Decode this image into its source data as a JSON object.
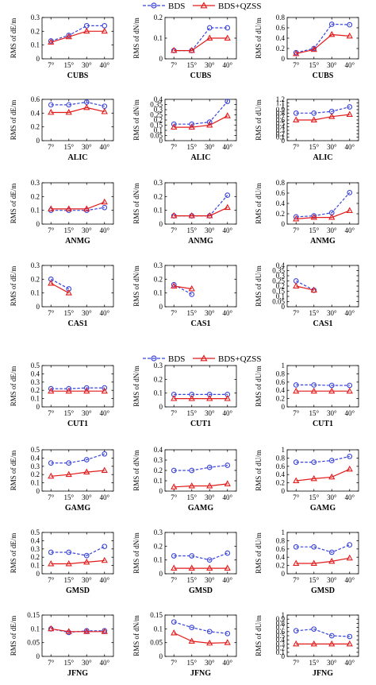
{
  "colors": {
    "bds": "#3a44d9",
    "qzss": "#e21a1a"
  },
  "series_names": [
    "BDS",
    "BDS+QZSS"
  ],
  "categories": [
    "7°",
    "15°",
    "30°",
    "40°"
  ],
  "ylabels": {
    "E": "RMS of dE/m",
    "N": "RMS of dN/m",
    "U": "RMS of dU/m"
  },
  "chart_data": [
    {
      "type": "line",
      "station": "CUBS",
      "component": "E",
      "ylabel": "RMS of dE/m",
      "ylim": [
        0,
        0.3
      ],
      "yticks": [
        "0",
        "0.1",
        "0.2",
        "0.3"
      ],
      "categories": [
        "7°",
        "15°",
        "30°",
        "40°"
      ],
      "series": [
        {
          "name": "BDS",
          "values": [
            0.13,
            0.17,
            0.24,
            0.24
          ]
        },
        {
          "name": "BDS+QZSS",
          "values": [
            0.12,
            0.16,
            0.2,
            0.2
          ]
        }
      ]
    },
    {
      "type": "line",
      "station": "CUBS",
      "component": "N",
      "ylabel": "RMS of dN/m",
      "ylim": [
        0,
        0.2
      ],
      "yticks": [
        "0",
        "0.1",
        "0.2"
      ],
      "categories": [
        "7°",
        "15°",
        "30°",
        "40°"
      ],
      "series": [
        {
          "name": "BDS",
          "values": [
            0.04,
            0.04,
            0.15,
            0.15
          ]
        },
        {
          "name": "BDS+QZSS",
          "values": [
            0.04,
            0.04,
            0.1,
            0.1
          ]
        }
      ]
    },
    {
      "type": "line",
      "station": "CUBS",
      "component": "U",
      "ylabel": "RMS of dU/m",
      "ylim": [
        0,
        0.8
      ],
      "yticks": [
        "0",
        "0.2",
        "0.4",
        "0.6",
        "0.8"
      ],
      "categories": [
        "7°",
        "15°",
        "30°",
        "40°"
      ],
      "series": [
        {
          "name": "BDS",
          "values": [
            0.12,
            0.2,
            0.67,
            0.66
          ]
        },
        {
          "name": "BDS+QZSS",
          "values": [
            0.1,
            0.18,
            0.47,
            0.44
          ]
        }
      ]
    },
    {
      "type": "line",
      "station": "ALIC",
      "component": "E",
      "ylabel": "RMS of dE/m",
      "ylim": [
        0,
        0.6
      ],
      "yticks": [
        "0",
        "0.2",
        "0.4",
        "0.6"
      ],
      "categories": [
        "7°",
        "15°",
        "30°",
        "40°"
      ],
      "series": [
        {
          "name": "BDS",
          "values": [
            0.52,
            0.52,
            0.56,
            0.5
          ]
        },
        {
          "name": "BDS+QZSS",
          "values": [
            0.41,
            0.41,
            0.48,
            0.42
          ]
        }
      ]
    },
    {
      "type": "line",
      "station": "ALIC",
      "component": "N",
      "ylabel": "RMS of dN/m",
      "ylim": [
        0,
        0.4
      ],
      "yticks": [
        "0",
        "0.05",
        "0.1",
        "0.15",
        "0.2",
        "0.25",
        "0.3",
        "0.35",
        "0.4"
      ],
      "categories": [
        "7°",
        "15°",
        "30°",
        "40°"
      ],
      "series": [
        {
          "name": "BDS",
          "values": [
            0.16,
            0.16,
            0.18,
            0.38
          ]
        },
        {
          "name": "BDS+QZSS",
          "values": [
            0.13,
            0.13,
            0.15,
            0.24
          ]
        }
      ]
    },
    {
      "type": "line",
      "station": "ALIC",
      "component": "U",
      "ylabel": "RMS of dU/m",
      "ylim": [
        0,
        1.2
      ],
      "yticks": [
        "0",
        "0.1",
        "0.2",
        "0.3",
        "0.4",
        "0.5",
        "0.6",
        "0.7",
        "0.8",
        "0.9",
        "1",
        "1.1",
        "1.2"
      ],
      "categories": [
        "7°",
        "15°",
        "30°",
        "40°"
      ],
      "series": [
        {
          "name": "BDS",
          "values": [
            0.8,
            0.8,
            0.85,
            0.98
          ]
        },
        {
          "name": "BDS+QZSS",
          "values": [
            0.6,
            0.6,
            0.7,
            0.76
          ]
        }
      ]
    },
    {
      "type": "line",
      "station": "ANMG",
      "component": "E",
      "ylabel": "RMS of dE/m",
      "ylim": [
        0,
        0.3
      ],
      "yticks": [
        "0",
        "0.1",
        "0.2",
        "0.3"
      ],
      "categories": [
        "7°",
        "15°",
        "30°",
        "40°"
      ],
      "series": [
        {
          "name": "BDS",
          "values": [
            0.1,
            0.1,
            0.1,
            0.12
          ]
        },
        {
          "name": "BDS+QZSS",
          "values": [
            0.11,
            0.11,
            0.11,
            0.16
          ]
        }
      ]
    },
    {
      "type": "line",
      "station": "ANMG",
      "component": "N",
      "ylabel": "RMS of dN/m",
      "ylim": [
        0,
        0.3
      ],
      "yticks": [
        "0",
        "0.1",
        "0.2",
        "0.3"
      ],
      "categories": [
        "7°",
        "15°",
        "30°",
        "40°"
      ],
      "series": [
        {
          "name": "BDS",
          "values": [
            0.06,
            0.06,
            0.06,
            0.21
          ]
        },
        {
          "name": "BDS+QZSS",
          "values": [
            0.06,
            0.06,
            0.06,
            0.12
          ]
        }
      ]
    },
    {
      "type": "line",
      "station": "ANMG",
      "component": "U",
      "ylabel": "RMS of dU/m",
      "ylim": [
        0,
        0.8
      ],
      "yticks": [
        "0",
        "0.2",
        "0.4",
        "0.6",
        "0.8"
      ],
      "categories": [
        "7°",
        "15°",
        "30°",
        "40°"
      ],
      "series": [
        {
          "name": "BDS",
          "values": [
            0.14,
            0.16,
            0.22,
            0.61
          ]
        },
        {
          "name": "BDS+QZSS",
          "values": [
            0.1,
            0.13,
            0.13,
            0.26
          ]
        }
      ]
    },
    {
      "type": "line",
      "station": "CAS1",
      "component": "E",
      "ylabel": "RMS of dE/m",
      "ylim": [
        0,
        0.3
      ],
      "yticks": [
        "0",
        "0.1",
        "0.2",
        "0.3"
      ],
      "categories": [
        "7°",
        "15°",
        "30°",
        "40°"
      ],
      "series": [
        {
          "name": "BDS",
          "values": [
            0.2,
            0.13,
            null,
            null
          ]
        },
        {
          "name": "BDS+QZSS",
          "values": [
            0.17,
            0.1,
            null,
            null
          ]
        }
      ]
    },
    {
      "type": "line",
      "station": "CAS1",
      "component": "N",
      "ylabel": "RMS of dN/m",
      "ylim": [
        0,
        0.3
      ],
      "yticks": [
        "0",
        "0.1",
        "0.2",
        "0.3"
      ],
      "categories": [
        "7°",
        "15°",
        "30°",
        "40°"
      ],
      "series": [
        {
          "name": "BDS",
          "values": [
            0.16,
            0.09,
            null,
            null
          ]
        },
        {
          "name": "BDS+QZSS",
          "values": [
            0.15,
            0.13,
            null,
            null
          ]
        }
      ]
    },
    {
      "type": "line",
      "station": "CAS1",
      "component": "U",
      "ylabel": "RMS of dU/m",
      "ylim": [
        0,
        0.4
      ],
      "yticks": [
        "0",
        "0.05",
        "0.1",
        "0.15",
        "0.2",
        "0.25",
        "0.3",
        "0.35",
        "0.4"
      ],
      "categories": [
        "7°",
        "15°",
        "30°",
        "40°"
      ],
      "series": [
        {
          "name": "BDS",
          "values": [
            0.25,
            0.16,
            null,
            null
          ]
        },
        {
          "name": "BDS+QZSS",
          "values": [
            0.2,
            0.16,
            null,
            null
          ]
        }
      ]
    },
    {
      "type": "line",
      "station": "CUT1",
      "component": "E",
      "ylabel": "RMS of dE/m",
      "ylim": [
        0,
        0.5
      ],
      "yticks": [
        "0",
        "0.1",
        "0.2",
        "0.3",
        "0.4",
        "0.5"
      ],
      "categories": [
        "7°",
        "15°",
        "30°",
        "40°"
      ],
      "series": [
        {
          "name": "BDS",
          "values": [
            0.22,
            0.22,
            0.23,
            0.23
          ]
        },
        {
          "name": "BDS+QZSS",
          "values": [
            0.19,
            0.19,
            0.19,
            0.19
          ]
        }
      ]
    },
    {
      "type": "line",
      "station": "CUT1",
      "component": "N",
      "ylabel": "RMS of dN/m",
      "ylim": [
        0,
        0.3
      ],
      "yticks": [
        "0",
        "0.1",
        "0.2",
        "0.3"
      ],
      "categories": [
        "7°",
        "15°",
        "30°",
        "40°"
      ],
      "series": [
        {
          "name": "BDS",
          "values": [
            0.09,
            0.09,
            0.09,
            0.09
          ]
        },
        {
          "name": "BDS+QZSS",
          "values": [
            0.06,
            0.06,
            0.06,
            0.06
          ]
        }
      ]
    },
    {
      "type": "line",
      "station": "CUT1",
      "component": "U",
      "ylabel": "RMS of dU/m",
      "ylim": [
        0,
        1
      ],
      "yticks": [
        "0",
        "0.2",
        "0.4",
        "0.6",
        "0.8",
        "1"
      ],
      "categories": [
        "7°",
        "15°",
        "30°",
        "40°"
      ],
      "series": [
        {
          "name": "BDS",
          "values": [
            0.53,
            0.53,
            0.52,
            0.52
          ]
        },
        {
          "name": "BDS+QZSS",
          "values": [
            0.38,
            0.38,
            0.38,
            0.38
          ]
        }
      ]
    },
    {
      "type": "line",
      "station": "GAMG",
      "component": "E",
      "ylabel": "RMS of dE/m",
      "ylim": [
        0,
        0.5
      ],
      "yticks": [
        "0",
        "0.1",
        "0.2",
        "0.3",
        "0.4",
        "0.5"
      ],
      "categories": [
        "7°",
        "15°",
        "30°",
        "40°"
      ],
      "series": [
        {
          "name": "BDS",
          "values": [
            0.34,
            0.34,
            0.38,
            0.45
          ]
        },
        {
          "name": "BDS+QZSS",
          "values": [
            0.18,
            0.2,
            0.23,
            0.25
          ]
        }
      ]
    },
    {
      "type": "line",
      "station": "GAMG",
      "component": "N",
      "ylabel": "RMS of dN/m",
      "ylim": [
        0,
        0.4
      ],
      "yticks": [
        "0",
        "0.1",
        "0.2",
        "0.3",
        "0.4"
      ],
      "categories": [
        "7°",
        "15°",
        "30°",
        "40°"
      ],
      "series": [
        {
          "name": "BDS",
          "values": [
            0.2,
            0.2,
            0.23,
            0.25
          ]
        },
        {
          "name": "BDS+QZSS",
          "values": [
            0.04,
            0.05,
            0.05,
            0.07
          ]
        }
      ]
    },
    {
      "type": "line",
      "station": "GAMG",
      "component": "U",
      "ylabel": "RMS of dU/m",
      "ylim": [
        0,
        1
      ],
      "yticks": [
        "0",
        "0.2",
        "0.4",
        "0.6",
        "0.8",
        "1"
      ],
      "categories": [
        "7°",
        "15°",
        "30°",
        "40°"
      ],
      "series": [
        {
          "name": "BDS",
          "values": [
            0.7,
            0.7,
            0.74,
            0.84
          ]
        },
        {
          "name": "BDS+QZSS",
          "values": [
            0.25,
            0.3,
            0.34,
            0.53
          ]
        }
      ]
    },
    {
      "type": "line",
      "station": "GMSD",
      "component": "E",
      "ylabel": "RMS of dE/m",
      "ylim": [
        0,
        0.5
      ],
      "yticks": [
        "0",
        "0.1",
        "0.2",
        "0.3",
        "0.4",
        "0.5"
      ],
      "categories": [
        "7°",
        "15°",
        "30°",
        "40°"
      ],
      "series": [
        {
          "name": "BDS",
          "values": [
            0.26,
            0.26,
            0.22,
            0.33
          ]
        },
        {
          "name": "BDS+QZSS",
          "values": [
            0.12,
            0.12,
            0.14,
            0.16
          ]
        }
      ]
    },
    {
      "type": "line",
      "station": "GMSD",
      "component": "N",
      "ylabel": "RMS of dN/m",
      "ylim": [
        0,
        0.3
      ],
      "yticks": [
        "0",
        "0.1",
        "0.2",
        "0.3"
      ],
      "categories": [
        "7°",
        "15°",
        "30°",
        "40°"
      ],
      "series": [
        {
          "name": "BDS",
          "values": [
            0.13,
            0.13,
            0.1,
            0.15
          ]
        },
        {
          "name": "BDS+QZSS",
          "values": [
            0.04,
            0.04,
            0.04,
            0.04
          ]
        }
      ]
    },
    {
      "type": "line",
      "station": "GMSD",
      "component": "U",
      "ylabel": "RMS of dU/m",
      "ylim": [
        0,
        1
      ],
      "yticks": [
        "0",
        "0.2",
        "0.4",
        "0.6",
        "0.8",
        "1"
      ],
      "categories": [
        "7°",
        "15°",
        "30°",
        "40°"
      ],
      "series": [
        {
          "name": "BDS",
          "values": [
            0.65,
            0.65,
            0.52,
            0.7
          ]
        },
        {
          "name": "BDS+QZSS",
          "values": [
            0.25,
            0.25,
            0.3,
            0.38
          ]
        }
      ]
    },
    {
      "type": "line",
      "station": "JFNG",
      "component": "E",
      "ylabel": "RMS of dE/m",
      "ylim": [
        0,
        0.15
      ],
      "yticks": [
        "0",
        "0.05",
        "0.1",
        "0.15"
      ],
      "categories": [
        "7°",
        "15°",
        "30°",
        "40°"
      ],
      "series": [
        {
          "name": "BDS",
          "values": [
            0.1,
            0.087,
            0.093,
            0.093
          ]
        },
        {
          "name": "BDS+QZSS",
          "values": [
            0.1,
            0.09,
            0.09,
            0.09
          ]
        }
      ]
    },
    {
      "type": "line",
      "station": "JFNG",
      "component": "N",
      "ylabel": "RMS of dN/m",
      "ylim": [
        0,
        0.15
      ],
      "yticks": [
        "0",
        "0.05",
        "0.1",
        "0.15"
      ],
      "categories": [
        "7°",
        "15°",
        "30°",
        "40°"
      ],
      "series": [
        {
          "name": "BDS",
          "values": [
            0.125,
            0.105,
            0.09,
            0.083
          ]
        },
        {
          "name": "BDS+QZSS",
          "values": [
            0.085,
            0.055,
            0.048,
            0.05
          ]
        }
      ]
    },
    {
      "type": "line",
      "station": "JFNG",
      "component": "U",
      "ylabel": "RMS of dU/m",
      "ylim": [
        0,
        1
      ],
      "yticks": [
        "0",
        "0.1",
        "0.2",
        "0.3",
        "0.4",
        "0.5",
        "0.6",
        "0.7",
        "0.8",
        "0.9",
        "1"
      ],
      "categories": [
        "7°",
        "15°",
        "30°",
        "40°"
      ],
      "series": [
        {
          "name": "BDS",
          "values": [
            0.62,
            0.66,
            0.5,
            0.48
          ]
        },
        {
          "name": "BDS+QZSS",
          "values": [
            0.3,
            0.3,
            0.3,
            0.3
          ]
        }
      ]
    }
  ]
}
